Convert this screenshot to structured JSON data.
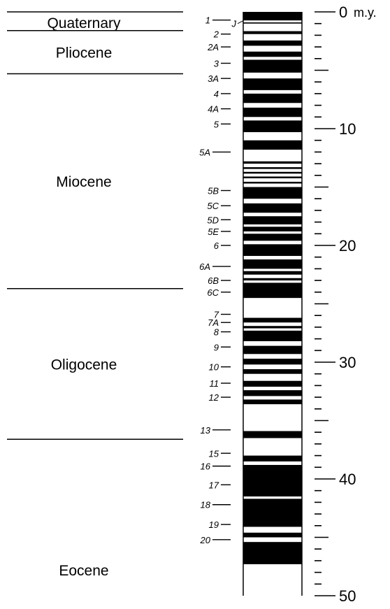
{
  "epochs": [
    {
      "name": "Quaternary",
      "start": 0,
      "end": 1.6
    },
    {
      "name": "Pliocene",
      "start": 1.6,
      "end": 5.3
    },
    {
      "name": "Miocene",
      "start": 5.3,
      "end": 23.7
    },
    {
      "name": "Oligocene",
      "start": 23.7,
      "end": 36.6
    },
    {
      "name": "Eocene",
      "start": 36.6,
      "end": 50
    }
  ],
  "epoch_boundaries_ma": [
    0,
    1.6,
    5.3,
    23.7,
    36.6
  ],
  "time_scale": {
    "major_labels": [
      {
        "value": 0,
        "text": "0"
      },
      {
        "value": 10,
        "text": "10"
      },
      {
        "value": 20,
        "text": "20"
      },
      {
        "value": 30,
        "text": "30"
      },
      {
        "value": 40,
        "text": "40"
      },
      {
        "value": 50,
        "text": "50"
      }
    ],
    "unit_label": "m.y.",
    "min_ma": 0,
    "max_ma": 50,
    "minor_step_ma": 1,
    "mid_step_ma": 5
  },
  "anomalies": [
    {
      "label": "1",
      "age": 0.7
    },
    {
      "label": "2",
      "age": 1.9
    },
    {
      "label": "J",
      "age": 1.0
    },
    {
      "label": "2A",
      "age": 3.0
    },
    {
      "label": "3",
      "age": 4.4
    },
    {
      "label": "3A",
      "age": 5.7
    },
    {
      "label": "4",
      "age": 7.0
    },
    {
      "label": "4A",
      "age": 8.3
    },
    {
      "label": "5",
      "age": 9.6
    },
    {
      "label": "5A",
      "age": 12.0
    },
    {
      "label": "5B",
      "age": 15.3
    },
    {
      "label": "5C",
      "age": 16.6
    },
    {
      "label": "5D",
      "age": 17.8
    },
    {
      "label": "5E",
      "age": 18.8
    },
    {
      "label": "6",
      "age": 20.0
    },
    {
      "label": "6A",
      "age": 21.8
    },
    {
      "label": "6B",
      "age": 23.0
    },
    {
      "label": "6C",
      "age": 24.0
    },
    {
      "label": "7",
      "age": 25.9
    },
    {
      "label": "7A",
      "age": 26.6
    },
    {
      "label": "8",
      "age": 27.4
    },
    {
      "label": "9",
      "age": 28.7
    },
    {
      "label": "10",
      "age": 30.4
    },
    {
      "label": "11",
      "age": 31.8
    },
    {
      "label": "12",
      "age": 33.0
    },
    {
      "label": "13",
      "age": 35.8
    },
    {
      "label": "15",
      "age": 37.8
    },
    {
      "label": "16",
      "age": 38.9
    },
    {
      "label": "17",
      "age": 40.5
    },
    {
      "label": "18",
      "age": 42.2
    },
    {
      "label": "19",
      "age": 43.9
    },
    {
      "label": "20",
      "age": 45.2
    }
  ],
  "polarity_normal": [
    [
      0,
      0.73
    ],
    [
      0.9,
      1.0
    ],
    [
      1.65,
      1.9
    ],
    [
      2.45,
      2.9
    ],
    [
      3.4,
      3.85
    ],
    [
      4.1,
      5.2
    ],
    [
      5.7,
      6.7
    ],
    [
      7.0,
      7.8
    ],
    [
      8.2,
      9.0
    ],
    [
      9.3,
      10.3
    ],
    [
      11.0,
      11.8
    ],
    [
      12.8,
      13.0
    ],
    [
      13.3,
      13.45
    ],
    [
      13.7,
      13.85
    ],
    [
      14.1,
      14.25
    ],
    [
      14.55,
      14.7
    ],
    [
      15.0,
      16.0
    ],
    [
      16.4,
      17.2
    ],
    [
      17.5,
      18.2
    ],
    [
      18.4,
      18.8
    ],
    [
      19.0,
      19.6
    ],
    [
      19.9,
      20.9
    ],
    [
      21.2,
      22.0
    ],
    [
      22.2,
      22.5
    ],
    [
      22.8,
      23.0
    ],
    [
      23.2,
      24.5
    ],
    [
      26.2,
      26.6
    ],
    [
      26.9,
      27.1
    ],
    [
      27.3,
      28.2
    ],
    [
      28.6,
      29.3
    ],
    [
      29.7,
      30.2
    ],
    [
      30.6,
      31.0
    ],
    [
      31.6,
      32.1
    ],
    [
      32.4,
      32.9
    ],
    [
      33.2,
      33.6
    ],
    [
      35.9,
      36.5
    ],
    [
      38.0,
      38.5
    ],
    [
      38.8,
      41.5
    ],
    [
      41.7,
      44.1
    ],
    [
      44.6,
      45.0
    ],
    [
      45.4,
      47.3
    ]
  ]
}
